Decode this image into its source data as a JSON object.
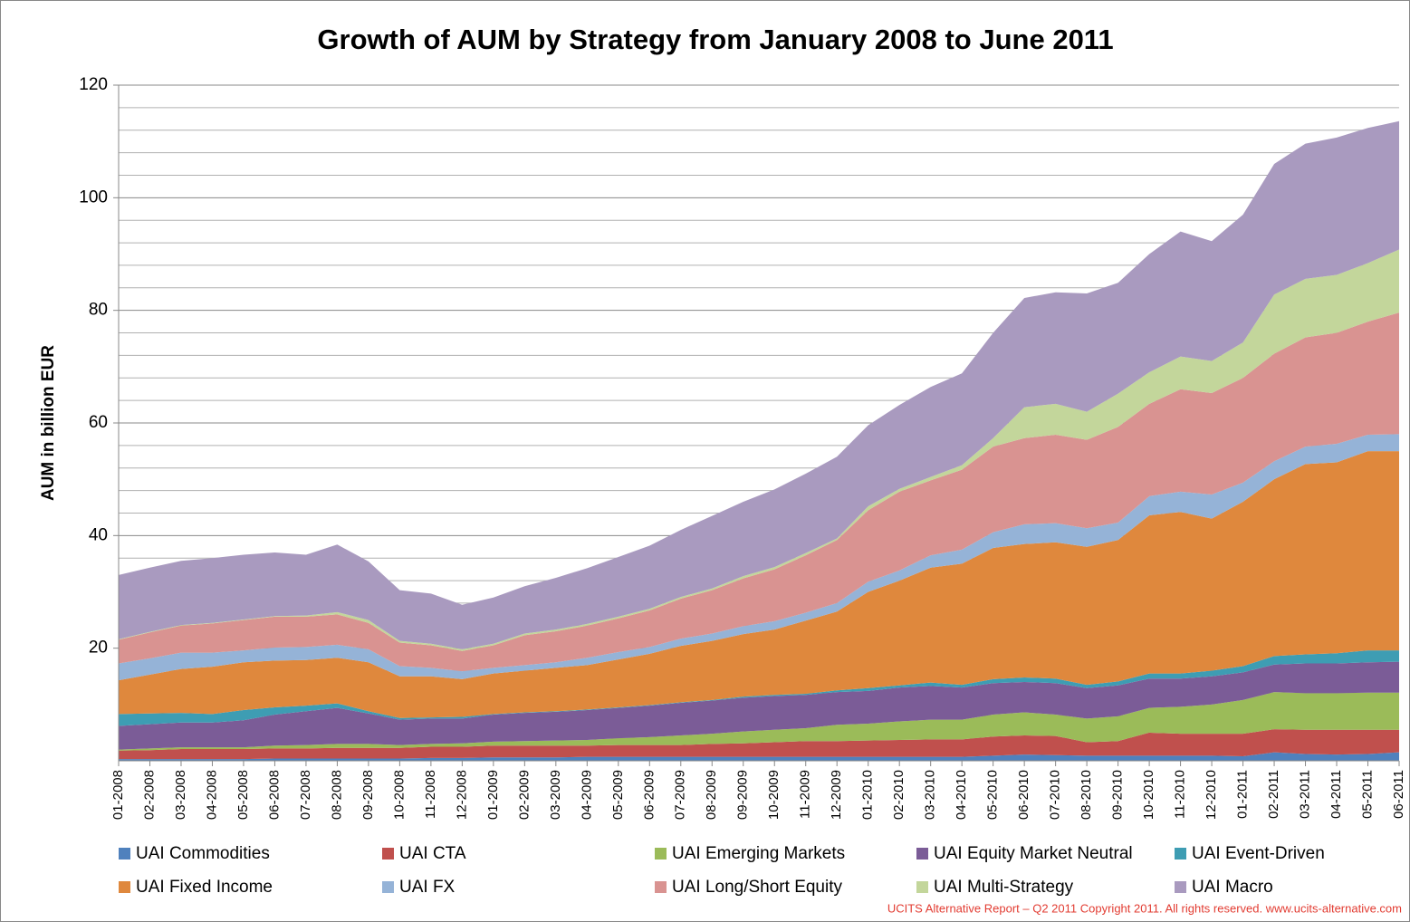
{
  "chart_data": {
    "type": "stacked_area",
    "title": "Growth of AUM by Strategy from January 2008 to June 2011",
    "y_label": "AUM in billion EUR",
    "footnote": "UCITS Alternative Report – Q2 2011 Copyright 2011. All rights reserved. www.ucits-alternative.com",
    "ylim": [
      0,
      120
    ],
    "yticks": [
      20,
      40,
      60,
      80,
      100,
      120
    ],
    "minor_gridlines": [
      4,
      8,
      12,
      16,
      24,
      28,
      32,
      36,
      44,
      48,
      52,
      56,
      64,
      68,
      72,
      76,
      84,
      88,
      92,
      96,
      104,
      108,
      112,
      116
    ],
    "grid": true,
    "legend": "bottom",
    "categories": [
      "01-2008",
      "02-2008",
      "03-2008",
      "04-2008",
      "05-2008",
      "06-2008",
      "07-2008",
      "08-2008",
      "09-2008",
      "10-2008",
      "11-2008",
      "12-2008",
      "01-2009",
      "02-2009",
      "03-2009",
      "04-2009",
      "05-2009",
      "06-2009",
      "07-2009",
      "08-2009",
      "09-2009",
      "10-2009",
      "11-2009",
      "12-2009",
      "01-2010",
      "02-2010",
      "03-2010",
      "04-2010",
      "05-2010",
      "06-2010",
      "07-2010",
      "08-2010",
      "09-2010",
      "10-2010",
      "11-2010",
      "12-2010",
      "01-2011",
      "02-2011",
      "03-2011",
      "04-2011",
      "05-2011",
      "06-2011"
    ],
    "series": [
      {
        "name": "UAI Commodities",
        "color": "#4f81bd",
        "values": [
          0.3,
          0.3,
          0.3,
          0.3,
          0.3,
          0.4,
          0.4,
          0.4,
          0.4,
          0.4,
          0.5,
          0.5,
          0.6,
          0.6,
          0.6,
          0.7,
          0.7,
          0.7,
          0.7,
          0.7,
          0.7,
          0.7,
          0.7,
          0.7,
          0.7,
          0.7,
          0.7,
          0.7,
          0.9,
          1.1,
          1.0,
          0.9,
          0.9,
          0.9,
          0.9,
          0.9,
          0.8,
          1.5,
          1.2,
          1.1,
          1.2,
          1.5
        ]
      },
      {
        "name": "UAI CTA",
        "color": "#c0504d",
        "values": [
          1.5,
          1.6,
          1.8,
          1.8,
          1.8,
          1.8,
          1.8,
          1.9,
          1.9,
          1.9,
          2.0,
          2.0,
          2.1,
          2.1,
          2.1,
          2.0,
          2.1,
          2.1,
          2.1,
          2.3,
          2.4,
          2.6,
          2.8,
          2.8,
          2.9,
          3.0,
          3.1,
          3.1,
          3.4,
          3.4,
          3.4,
          2.4,
          2.6,
          4.1,
          3.9,
          3.9,
          4.0,
          4.1,
          4.3,
          4.4,
          4.3,
          4.0
        ]
      },
      {
        "name": "UAI Emerging Markets",
        "color": "#9bbb59",
        "values": [
          0.2,
          0.3,
          0.3,
          0.3,
          0.3,
          0.5,
          0.6,
          0.7,
          0.7,
          0.5,
          0.5,
          0.6,
          0.7,
          0.8,
          0.9,
          1.0,
          1.2,
          1.4,
          1.7,
          1.8,
          2.1,
          2.2,
          2.3,
          2.9,
          3.0,
          3.3,
          3.5,
          3.5,
          3.9,
          4.1,
          3.8,
          4.2,
          4.4,
          4.4,
          4.8,
          5.2,
          6.0,
          6.6,
          6.5,
          6.5,
          6.6,
          6.6
        ]
      },
      {
        "name": "UAI Equity Market Neutral",
        "color": "#7b5c97",
        "values": [
          4.2,
          4.3,
          4.4,
          4.4,
          4.8,
          5.5,
          6.0,
          6.4,
          5.4,
          4.5,
          4.5,
          4.4,
          4.8,
          5.0,
          5.1,
          5.3,
          5.4,
          5.6,
          5.8,
          5.9,
          6.0,
          6.0,
          5.9,
          5.8,
          5.8,
          6.0,
          6.0,
          5.7,
          5.6,
          5.4,
          5.6,
          5.4,
          5.5,
          5.2,
          5.0,
          5.0,
          4.9,
          4.9,
          5.3,
          5.3,
          5.4,
          5.5
        ]
      },
      {
        "name": "UAI Event-Driven",
        "color": "#3e9db3",
        "values": [
          2.1,
          1.9,
          1.7,
          1.5,
          1.8,
          1.3,
          1.0,
          0.8,
          0.4,
          0.3,
          0.2,
          0.3,
          0.1,
          0.1,
          0.1,
          0.1,
          0.1,
          0.1,
          0.1,
          0.1,
          0.2,
          0.2,
          0.2,
          0.3,
          0.5,
          0.4,
          0.6,
          0.5,
          0.7,
          0.8,
          0.8,
          0.6,
          0.7,
          0.9,
          0.9,
          1.0,
          1.1,
          1.5,
          1.6,
          1.8,
          2.1,
          2.0
        ]
      },
      {
        "name": "UAI Fixed Income",
        "color": "#df883d",
        "values": [
          6.0,
          6.9,
          7.8,
          8.4,
          8.5,
          8.3,
          8.1,
          8.1,
          8.7,
          7.4,
          7.3,
          6.7,
          7.2,
          7.4,
          7.7,
          7.9,
          8.5,
          9.1,
          10.0,
          10.5,
          11.1,
          11.6,
          13.0,
          14.0,
          17.1,
          18.6,
          20.4,
          21.5,
          23.3,
          23.7,
          24.2,
          24.5,
          25.1,
          28.1,
          28.7,
          27.0,
          29.2,
          31.4,
          33.8,
          33.9,
          35.4,
          35.4
        ]
      },
      {
        "name": "UAI FX",
        "color": "#95b3d7",
        "values": [
          3.0,
          2.9,
          2.9,
          2.5,
          2.1,
          2.3,
          2.3,
          2.3,
          2.3,
          1.8,
          1.5,
          1.4,
          1.0,
          1.0,
          1.0,
          1.3,
          1.3,
          1.2,
          1.3,
          1.3,
          1.4,
          1.5,
          1.4,
          1.5,
          1.8,
          1.8,
          2.2,
          2.5,
          2.8,
          3.5,
          3.4,
          3.3,
          3.1,
          3.4,
          3.6,
          4.3,
          3.4,
          3.2,
          3.1,
          3.3,
          2.9,
          3.0
        ]
      },
      {
        "name": "UAI Long/Short Equity",
        "color": "#d99391",
        "values": [
          4.2,
          4.6,
          4.8,
          5.2,
          5.4,
          5.5,
          5.4,
          5.4,
          4.7,
          4.2,
          4.0,
          3.6,
          4.0,
          5.3,
          5.5,
          5.7,
          6.0,
          6.5,
          7.1,
          7.7,
          8.5,
          9.2,
          10.2,
          11.2,
          12.7,
          14.0,
          13.3,
          14.2,
          15.2,
          15.3,
          15.7,
          15.7,
          17.0,
          16.4,
          18.2,
          18.0,
          18.6,
          19.1,
          19.4,
          19.7,
          20.1,
          21.6
        ]
      },
      {
        "name": "UAI Multi-Strategy",
        "color": "#c3d69b",
        "values": [
          0.1,
          0.1,
          0.1,
          0.1,
          0.1,
          0.1,
          0.2,
          0.4,
          0.5,
          0.3,
          0.3,
          0.3,
          0.3,
          0.3,
          0.3,
          0.3,
          0.3,
          0.3,
          0.3,
          0.3,
          0.4,
          0.4,
          0.4,
          0.3,
          0.7,
          0.5,
          0.6,
          0.8,
          1.5,
          5.5,
          5.5,
          5.0,
          5.9,
          5.6,
          5.8,
          5.7,
          6.3,
          10.5,
          10.4,
          10.3,
          10.4,
          11.2
        ]
      },
      {
        "name": "UAI Macro",
        "color": "#a99abf",
        "values": [
          11.4,
          11.4,
          11.4,
          11.5,
          11.5,
          11.3,
          10.8,
          12.0,
          10.4,
          9.0,
          8.9,
          7.9,
          8.2,
          8.4,
          9.2,
          9.9,
          10.6,
          11.2,
          11.9,
          12.9,
          13.2,
          13.8,
          14.1,
          14.5,
          14.4,
          14.9,
          16.0,
          16.3,
          18.7,
          19.4,
          19.8,
          21.0,
          19.7,
          21.0,
          22.2,
          21.3,
          22.7,
          23.2,
          24.0,
          24.4,
          24.0,
          22.8
        ]
      }
    ]
  }
}
